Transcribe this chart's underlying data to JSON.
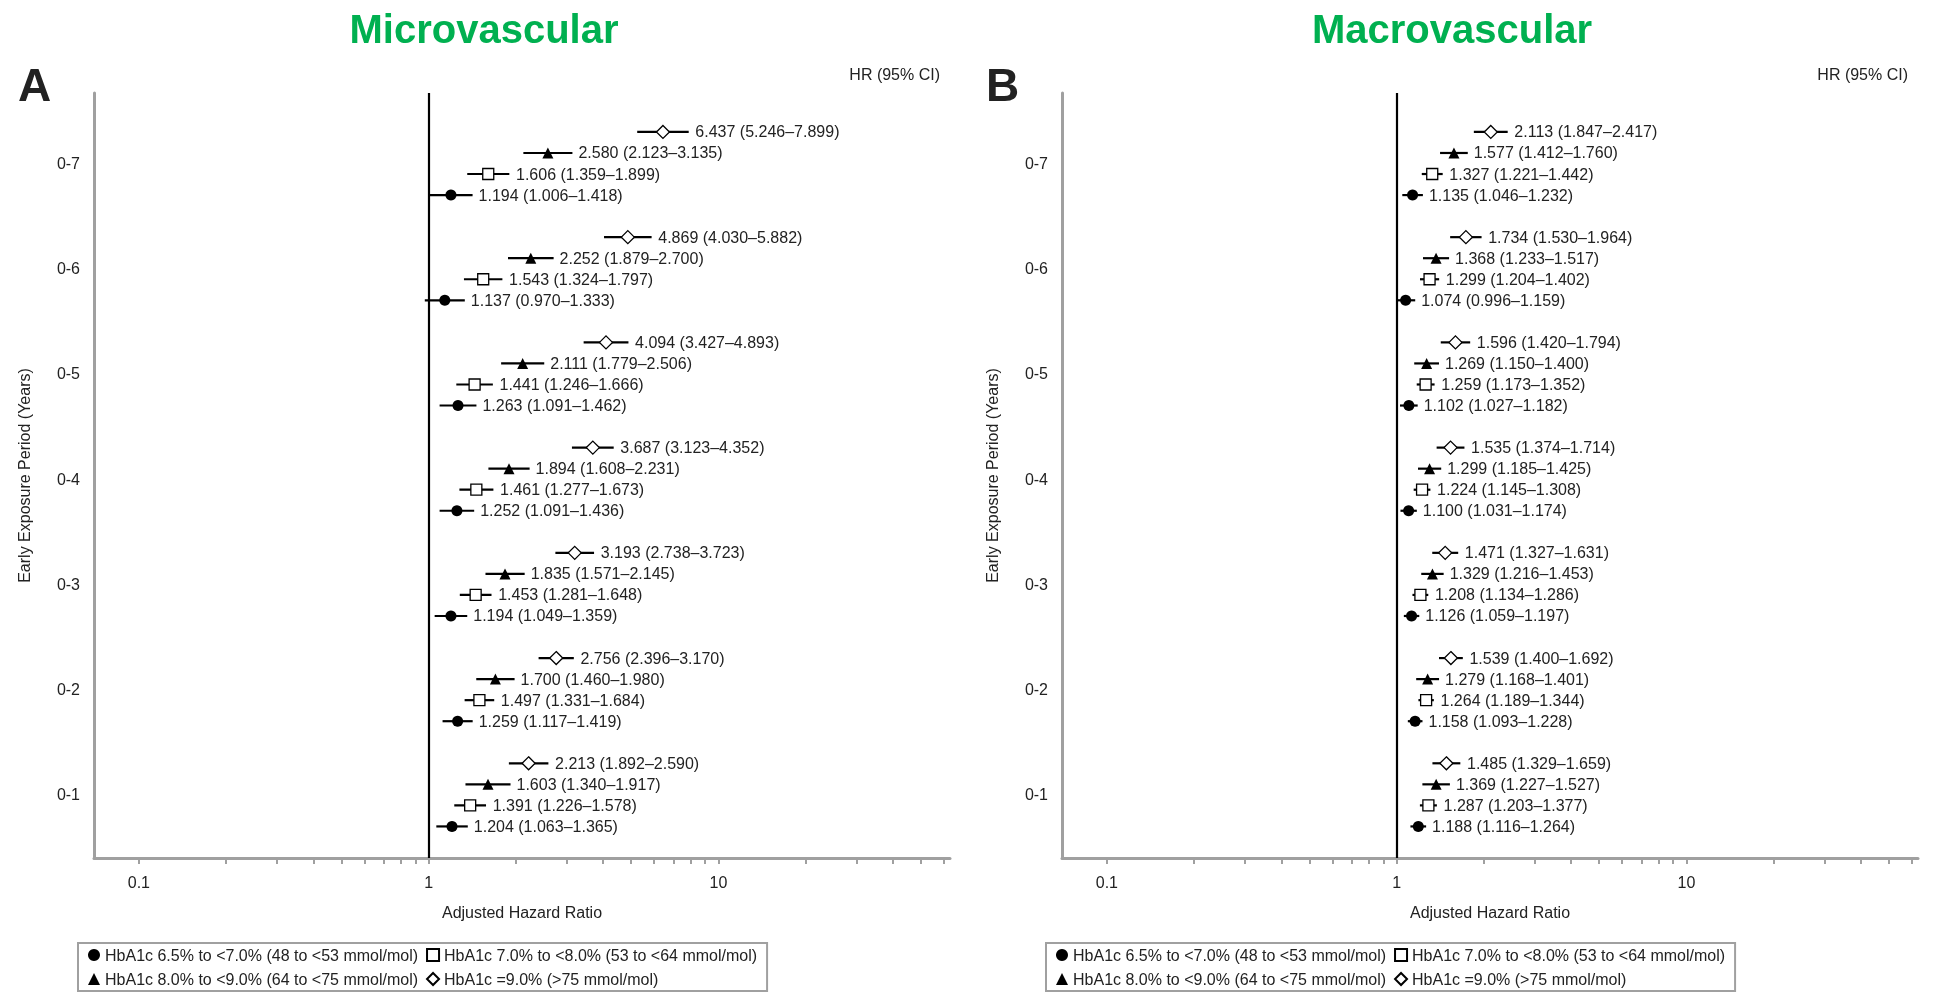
{
  "chart_data": [
    {
      "type": "scatter",
      "orientation": "horizontal",
      "title": "Microvascular",
      "xlabel": "Adjusted Hazard Ratio",
      "ylabel": "Early Exposure Period (Years)",
      "annotations": [
        "A",
        "HR (95% CI)"
      ],
      "categories": [
        "0-7",
        "0-6",
        "0-5",
        "0-4",
        "0-3",
        "0-2",
        "0-1"
      ],
      "log": "x",
      "xlim": [
        0.07,
        63
      ],
      "xticks": [
        0.1,
        {
          "value": 0.2,
          "label": null
        },
        {
          "value": 0.3,
          "label": null
        },
        {
          "value": 0.4,
          "label": null
        },
        {
          "value": 0.5,
          "label": null
        },
        {
          "value": 0.6,
          "label": null
        },
        {
          "value": 0.7,
          "label": null
        },
        {
          "value": 0.8,
          "label": null
        },
        {
          "value": 0.9,
          "label": null
        },
        1,
        {
          "value": 2,
          "label": null
        },
        {
          "value": 3,
          "label": null
        },
        {
          "value": 4,
          "label": null
        },
        {
          "value": 5,
          "label": null
        },
        {
          "value": 6,
          "label": null
        },
        {
          "value": 7,
          "label": null
        },
        {
          "value": 8,
          "label": null
        },
        {
          "value": 9,
          "label": null
        },
        10,
        {
          "value": 20,
          "label": null
        },
        {
          "value": 30,
          "label": null
        },
        {
          "value": 40,
          "label": null
        },
        {
          "value": 50,
          "label": null
        },
        {
          "value": 60,
          "label": null
        }
      ],
      "ref_lines": [
        {
          "axis": "x",
          "value": 1,
          "color": "#000000"
        }
      ],
      "legend": "bottom",
      "series": [
        {
          "name": "HbA1c 6.5% to <7.0% (48 to <53 mmol/mol)",
          "color": "#000000",
          "marker": "circle",
          "values": [
            1.194,
            1.137,
            1.263,
            1.252,
            1.194,
            1.259,
            1.204
          ],
          "errors": [
            [
              1.006,
              1.418
            ],
            [
              0.97,
              1.333
            ],
            [
              1.091,
              1.462
            ],
            [
              1.091,
              1.436
            ],
            [
              1.049,
              1.359
            ],
            [
              1.117,
              1.419
            ],
            [
              1.063,
              1.365
            ]
          ],
          "value_labels": [
            "1.194 (1.006–1.418)",
            "1.137 (0.970–1.333)",
            "1.263 (1.091–1.462)",
            "1.252 (1.091–1.436)",
            "1.194 (1.049–1.359)",
            "1.259 (1.117–1.419)",
            "1.204 (1.063–1.365)"
          ]
        },
        {
          "name": "HbA1c 7.0% to <8.0% (53 to <64 mmol/mol)",
          "color": "#000000",
          "marker": "square",
          "values": [
            1.606,
            1.543,
            1.441,
            1.461,
            1.453,
            1.497,
            1.391
          ],
          "errors": [
            [
              1.359,
              1.899
            ],
            [
              1.324,
              1.797
            ],
            [
              1.246,
              1.666
            ],
            [
              1.277,
              1.673
            ],
            [
              1.281,
              1.648
            ],
            [
              1.331,
              1.684
            ],
            [
              1.226,
              1.578
            ]
          ],
          "value_labels": [
            "1.606 (1.359–1.899)",
            "1.543 (1.324–1.797)",
            "1.441 (1.246–1.666)",
            "1.461 (1.277–1.673)",
            "1.453 (1.281–1.648)",
            "1.497 (1.331–1.684)",
            "1.391 (1.226–1.578)"
          ]
        },
        {
          "name": "HbA1c 8.0% to <9.0% (64 to <75 mmol/mol)",
          "color": "#000000",
          "marker": "triangle",
          "values": [
            2.58,
            2.252,
            2.111,
            1.894,
            1.835,
            1.7,
            1.603
          ],
          "errors": [
            [
              2.123,
              3.135
            ],
            [
              1.879,
              2.7
            ],
            [
              1.779,
              2.506
            ],
            [
              1.608,
              2.231
            ],
            [
              1.571,
              2.145
            ],
            [
              1.46,
              1.98
            ],
            [
              1.34,
              1.917
            ]
          ],
          "value_labels": [
            "2.580 (2.123–3.135)",
            "2.252 (1.879–2.700)",
            "2.111 (1.779–2.506)",
            "1.894 (1.608–2.231)",
            "1.835 (1.571–2.145)",
            "1.700 (1.460–1.980)",
            "1.603 (1.340–1.917)"
          ]
        },
        {
          "name": "HbA1c =9.0% (>75 mmol/mol)",
          "color": "#000000",
          "marker": "diamond",
          "values": [
            6.437,
            4.869,
            4.094,
            3.687,
            3.193,
            2.756,
            2.213
          ],
          "errors": [
            [
              5.246,
              7.899
            ],
            [
              4.03,
              5.882
            ],
            [
              3.427,
              4.893
            ],
            [
              3.123,
              4.352
            ],
            [
              2.738,
              3.723
            ],
            [
              2.396,
              3.17
            ],
            [
              1.892,
              2.59
            ]
          ],
          "value_labels": [
            "6.437 (5.246–7.899)",
            "4.869 (4.030–5.882)",
            "4.094 (3.427–4.893)",
            "3.687 (3.123–4.352)",
            "3.193 (2.738–3.723)",
            "2.756 (2.396–3.170)",
            "2.213 (1.892–2.590)"
          ]
        }
      ]
    },
    {
      "type": "scatter",
      "orientation": "horizontal",
      "title": "Macrovascular",
      "xlabel": "Adjusted Hazard Ratio",
      "ylabel": "Early Exposure Period (Years)",
      "annotations": [
        "B",
        "HR (95% CI)"
      ],
      "categories": [
        "0-7",
        "0-6",
        "0-5",
        "0-4",
        "0-3",
        "0-2",
        "0-1"
      ],
      "log": "x",
      "xlim": [
        0.07,
        63
      ],
      "xticks": [
        0.1,
        {
          "value": 0.2,
          "label": null
        },
        {
          "value": 0.3,
          "label": null
        },
        {
          "value": 0.4,
          "label": null
        },
        {
          "value": 0.5,
          "label": null
        },
        {
          "value": 0.6,
          "label": null
        },
        {
          "value": 0.7,
          "label": null
        },
        {
          "value": 0.8,
          "label": null
        },
        {
          "value": 0.9,
          "label": null
        },
        1,
        {
          "value": 2,
          "label": null
        },
        {
          "value": 3,
          "label": null
        },
        {
          "value": 4,
          "label": null
        },
        {
          "value": 5,
          "label": null
        },
        {
          "value": 6,
          "label": null
        },
        {
          "value": 7,
          "label": null
        },
        {
          "value": 8,
          "label": null
        },
        {
          "value": 9,
          "label": null
        },
        10,
        {
          "value": 20,
          "label": null
        },
        {
          "value": 30,
          "label": null
        },
        {
          "value": 40,
          "label": null
        },
        {
          "value": 50,
          "label": null
        },
        {
          "value": 60,
          "label": null
        }
      ],
      "ref_lines": [
        {
          "axis": "x",
          "value": 1,
          "color": "#000000"
        }
      ],
      "legend": "bottom",
      "series": [
        {
          "name": "HbA1c 6.5% to <7.0% (48 to <53 mmol/mol)",
          "color": "#000000",
          "marker": "circle",
          "values": [
            1.135,
            1.074,
            1.102,
            1.1,
            1.126,
            1.158,
            1.188
          ],
          "errors": [
            [
              1.046,
              1.232
            ],
            [
              0.996,
              1.159
            ],
            [
              1.027,
              1.182
            ],
            [
              1.031,
              1.174
            ],
            [
              1.059,
              1.197
            ],
            [
              1.093,
              1.228
            ],
            [
              1.116,
              1.264
            ]
          ],
          "value_labels": [
            "1.135 (1.046–1.232)",
            "1.074 (0.996–1.159)",
            "1.102 (1.027–1.182)",
            "1.100 (1.031–1.174)",
            "1.126 (1.059–1.197)",
            "1.158 (1.093–1.228)",
            "1.188 (1.116–1.264)"
          ]
        },
        {
          "name": "HbA1c 7.0% to <8.0% (53 to <64 mmol/mol)",
          "color": "#000000",
          "marker": "square",
          "values": [
            1.327,
            1.299,
            1.259,
            1.224,
            1.208,
            1.264,
            1.287
          ],
          "errors": [
            [
              1.221,
              1.442
            ],
            [
              1.204,
              1.402
            ],
            [
              1.173,
              1.352
            ],
            [
              1.145,
              1.308
            ],
            [
              1.134,
              1.286
            ],
            [
              1.189,
              1.344
            ],
            [
              1.203,
              1.377
            ]
          ],
          "value_labels": [
            "1.327 (1.221–1.442)",
            "1.299 (1.204–1.402)",
            "1.259 (1.173–1.352)",
            "1.224 (1.145–1.308)",
            "1.208 (1.134–1.286)",
            "1.264 (1.189–1.344)",
            "1.287 (1.203–1.377)"
          ]
        },
        {
          "name": "HbA1c 8.0% to <9.0% (64 to <75 mmol/mol)",
          "color": "#000000",
          "marker": "triangle",
          "values": [
            1.577,
            1.368,
            1.269,
            1.299,
            1.329,
            1.279,
            1.369
          ],
          "errors": [
            [
              1.412,
              1.76
            ],
            [
              1.233,
              1.517
            ],
            [
              1.15,
              1.4
            ],
            [
              1.185,
              1.425
            ],
            [
              1.216,
              1.453
            ],
            [
              1.168,
              1.401
            ],
            [
              1.227,
              1.527
            ]
          ],
          "value_labels": [
            "1.577 (1.412–1.760)",
            "1.368 (1.233–1.517)",
            "1.269 (1.150–1.400)",
            "1.299 (1.185–1.425)",
            "1.329 (1.216–1.453)",
            "1.279 (1.168–1.401)",
            "1.369 (1.227–1.527)"
          ]
        },
        {
          "name": "HbA1c =9.0% (>75 mmol/mol)",
          "color": "#000000",
          "marker": "diamond",
          "values": [
            2.113,
            1.734,
            1.596,
            1.535,
            1.471,
            1.539,
            1.485
          ],
          "errors": [
            [
              1.847,
              2.417
            ],
            [
              1.53,
              1.964
            ],
            [
              1.42,
              1.794
            ],
            [
              1.374,
              1.714
            ],
            [
              1.327,
              1.631
            ],
            [
              1.4,
              1.692
            ],
            [
              1.329,
              1.659
            ]
          ],
          "value_labels": [
            "2.113 (1.847–2.417)",
            "1.734 (1.530–1.964)",
            "1.596 (1.420–1.794)",
            "1.535 (1.374–1.714)",
            "1.471 (1.327–1.631)",
            "1.539 (1.400–1.692)",
            "1.485 (1.329–1.659)"
          ]
        }
      ]
    }
  ]
}
